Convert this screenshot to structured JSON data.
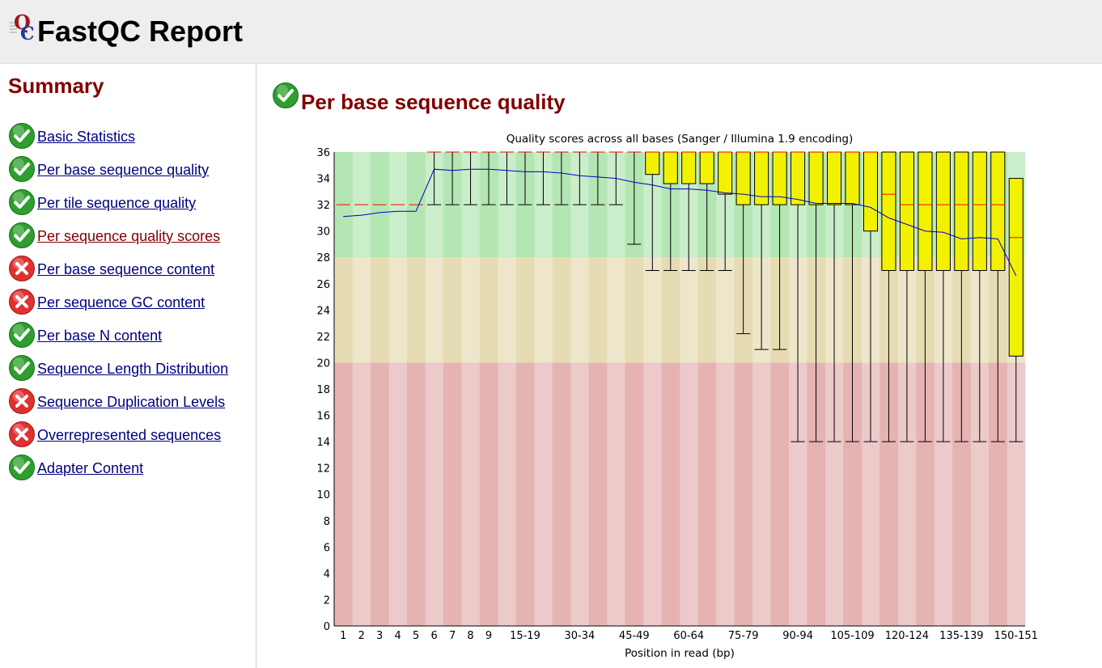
{
  "header": {
    "title": "FastQC Report",
    "logo_icon": "fastqc-logo-icon"
  },
  "sidebar": {
    "title": "Summary",
    "items": [
      {
        "label": "Basic Statistics",
        "status": "pass",
        "visited": false
      },
      {
        "label": "Per base sequence quality",
        "status": "pass",
        "visited": false
      },
      {
        "label": "Per tile sequence quality",
        "status": "pass",
        "visited": false
      },
      {
        "label": "Per sequence quality scores",
        "status": "pass",
        "visited": true
      },
      {
        "label": "Per base sequence content",
        "status": "fail",
        "visited": false
      },
      {
        "label": "Per sequence GC content",
        "status": "fail",
        "visited": false
      },
      {
        "label": "Per base N content",
        "status": "pass",
        "visited": false
      },
      {
        "label": "Sequence Length Distribution",
        "status": "pass",
        "visited": false
      },
      {
        "label": "Sequence Duplication Levels",
        "status": "fail",
        "visited": false
      },
      {
        "label": "Overrepresented sequences",
        "status": "fail",
        "visited": false
      },
      {
        "label": "Adapter Content",
        "status": "pass",
        "visited": false
      }
    ]
  },
  "main": {
    "section_title": "Per base sequence quality",
    "section_status": "pass"
  },
  "colors": {
    "pass": "#2e9e2e",
    "fail": "#e03030",
    "heading": "#800000",
    "link": "#000080",
    "box": "#f2f200",
    "median": "#ff0000",
    "mean": "#0000cc",
    "zone_good": "#b3e6b3",
    "zone_warn": "#e6dcb3",
    "zone_bad": "#e6b3b3"
  },
  "chart_data": {
    "type": "box",
    "title": "Quality scores across all bases (Sanger / Illumina 1.9 encoding)",
    "xlabel": "Position in read (bp)",
    "ylabel": "",
    "ylim": [
      0,
      36
    ],
    "yticks": [
      0,
      2,
      4,
      6,
      8,
      10,
      12,
      14,
      16,
      18,
      20,
      22,
      24,
      26,
      28,
      30,
      32,
      34,
      36
    ],
    "zones": [
      {
        "name": "good",
        "from": 28,
        "to": 36
      },
      {
        "name": "warn",
        "from": 20,
        "to": 28
      },
      {
        "name": "bad",
        "from": 0,
        "to": 20
      }
    ],
    "categories": [
      "1",
      "2",
      "3",
      "4",
      "5",
      "6",
      "7",
      "8",
      "9",
      "10-14",
      "15-19",
      "20-24",
      "25-29",
      "30-34",
      "35-39",
      "40-44",
      "45-49",
      "50-54",
      "55-59",
      "60-64",
      "65-69",
      "70-74",
      "75-79",
      "80-84",
      "85-89",
      "90-94",
      "95-99",
      "100-104",
      "105-109",
      "110-114",
      "115-119",
      "120-124",
      "125-129",
      "130-134",
      "135-139",
      "140-144",
      "145-149",
      "150-151"
    ],
    "xtick_labels": [
      "1",
      "2",
      "3",
      "4",
      "5",
      "6",
      "7",
      "8",
      "9",
      "15-19",
      "30-34",
      "45-49",
      "60-64",
      "75-79",
      "90-94",
      "105-109",
      "120-124",
      "135-139",
      "150-151"
    ],
    "lower_whisker": [
      32,
      32,
      32,
      32,
      32,
      32,
      32,
      32,
      32,
      32,
      32,
      32,
      32,
      32,
      32,
      32,
      29,
      27,
      27,
      27,
      27,
      27,
      22.2,
      21,
      21,
      14,
      14,
      14,
      14,
      14,
      14,
      14,
      14,
      14,
      14,
      14,
      14,
      14
    ],
    "q1": [
      32,
      32,
      32,
      32,
      32,
      36,
      36,
      36,
      36,
      36,
      36,
      36,
      36,
      36,
      36,
      36,
      36,
      34.3,
      33.6,
      33.6,
      33.6,
      32.8,
      32,
      32,
      32,
      32,
      32,
      32,
      32,
      30,
      27,
      27,
      27,
      27,
      27,
      27,
      27,
      20.5
    ],
    "median": [
      32,
      32,
      32,
      32,
      32,
      36,
      36,
      36,
      36,
      36,
      36,
      36,
      36,
      36,
      36,
      36,
      36,
      36,
      36,
      36,
      36,
      36,
      36,
      36,
      36,
      36,
      36,
      36,
      36,
      36,
      32.8,
      32,
      32,
      32,
      32,
      32,
      32,
      29.5
    ],
    "q3": [
      32,
      32,
      32,
      32,
      32,
      36,
      36,
      36,
      36,
      36,
      36,
      36,
      36,
      36,
      36,
      36,
      36,
      36,
      36,
      36,
      36,
      36,
      36,
      36,
      36,
      36,
      36,
      36,
      36,
      36,
      36,
      36,
      36,
      36,
      36,
      36,
      36,
      34
    ],
    "upper_whisker": [
      32,
      32,
      32,
      32,
      32,
      36,
      36,
      36,
      36,
      36,
      36,
      36,
      36,
      36,
      36,
      36,
      36,
      36,
      36,
      36,
      36,
      36,
      36,
      36,
      36,
      36,
      36,
      36,
      36,
      36,
      36,
      36,
      36,
      36,
      36,
      36,
      36,
      34
    ],
    "mean": [
      31.1,
      31.2,
      31.4,
      31.5,
      31.5,
      34.7,
      34.6,
      34.7,
      34.7,
      34.6,
      34.5,
      34.5,
      34.4,
      34.2,
      34.1,
      34.0,
      33.7,
      33.5,
      33.2,
      33.2,
      33.1,
      32.9,
      32.8,
      32.6,
      32.6,
      32.4,
      32.1,
      32.1,
      32.1,
      31.8,
      31.0,
      30.5,
      30.0,
      29.9,
      29.4,
      29.5,
      29.4,
      26.6
    ]
  }
}
